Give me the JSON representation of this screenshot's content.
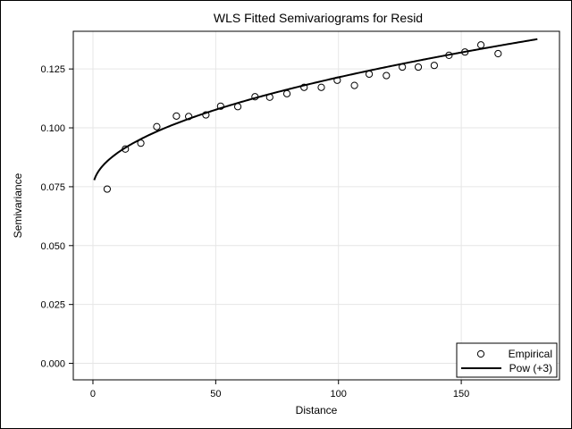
{
  "chart_data": {
    "type": "scatter",
    "title": "WLS Fitted Semivariograms for Resid",
    "xlabel": "Distance",
    "ylabel": "Semivariance",
    "xlim": [
      -8,
      190
    ],
    "ylim": [
      -0.007,
      0.141
    ],
    "xticks": [
      0,
      50,
      100,
      150
    ],
    "xtick_labels": [
      "0",
      "50",
      "100",
      "150"
    ],
    "yticks": [
      0.0,
      0.025,
      0.05,
      0.075,
      0.1,
      0.125
    ],
    "ytick_labels": [
      "0.000",
      "0.025",
      "0.050",
      "0.075",
      "0.100",
      "0.125"
    ],
    "grid": true,
    "legend_position": "bottom-right",
    "series": [
      {
        "name": "Empirical",
        "kind": "scatter",
        "marker": "open-circle",
        "color": "#000000",
        "x": [
          5.8,
          13.2,
          19.5,
          26.0,
          34.0,
          39.0,
          46.0,
          52.0,
          59.0,
          66.0,
          72.0,
          79.0,
          86.0,
          93.0,
          99.5,
          106.5,
          112.5,
          119.5,
          126.0,
          132.5,
          139.0,
          145.0,
          151.5,
          158.0,
          165.0
        ],
        "y": [
          0.074,
          0.091,
          0.0935,
          0.1005,
          0.105,
          0.1048,
          0.1055,
          0.1092,
          0.109,
          0.1132,
          0.113,
          0.1145,
          0.1172,
          0.1172,
          0.1202,
          0.118,
          0.1228,
          0.1222,
          0.1258,
          0.1258,
          0.1265,
          0.1308,
          0.1322,
          0.1352,
          0.1315
        ]
      },
      {
        "name": "Pow (+3)",
        "kind": "line",
        "color": "#000000",
        "model": {
          "nugget": 0.0745,
          "coefficient": 0.004695,
          "exponent": 0.5,
          "x_start": 0.5,
          "x_end": 181
        }
      }
    ]
  }
}
